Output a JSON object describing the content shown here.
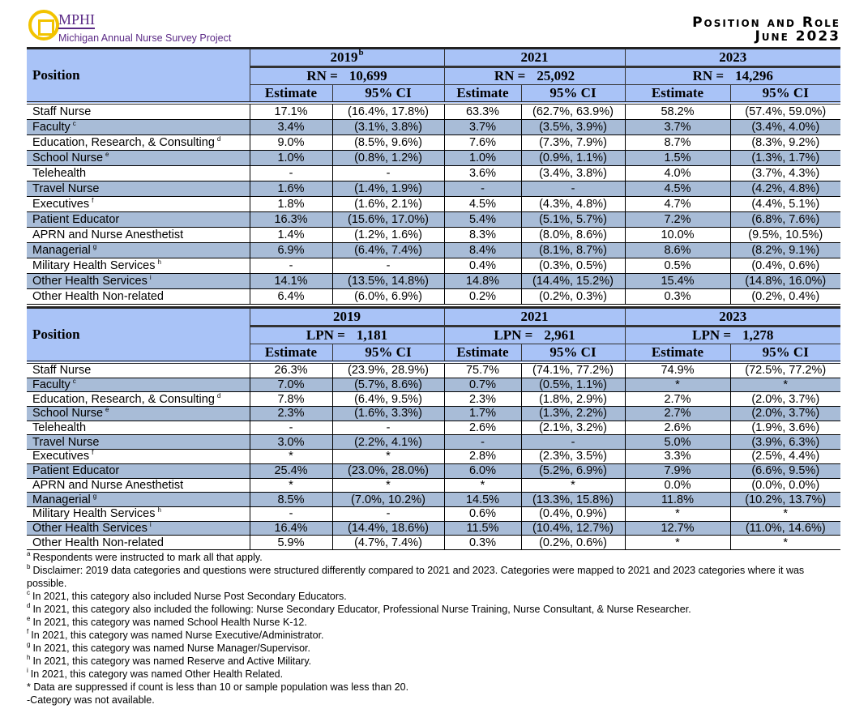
{
  "header": {
    "logo_text": "MPHI",
    "logo_subtitle": "Michigan Annual Nurse Survey Project",
    "title_line1": "Position and Role",
    "title_line2": "June 2023"
  },
  "colors": {
    "header_bg": "#a9c3f7",
    "stripe_bg": "#a8bcd7",
    "logo_purple": "#5b2a86",
    "logo_gold": "#f2c300"
  },
  "tables": [
    {
      "position_header": "Position",
      "estimate_label": "Estimate",
      "ci_label": "95% CI",
      "years": [
        {
          "year": "2019",
          "sup": "b",
          "n_label": "RN =",
          "n": "10,699"
        },
        {
          "year": "2021",
          "sup": "",
          "n_label": "RN =",
          "n": "25,092"
        },
        {
          "year": "2023",
          "sup": "",
          "n_label": "RN =",
          "n": "14,296"
        }
      ],
      "rows": [
        {
          "label": "Staff Nurse",
          "sup": "",
          "vals": [
            "17.1%",
            "(16.4%, 17.8%)",
            "63.3%",
            "(62.7%, 63.9%)",
            "58.2%",
            "(57.4%, 59.0%)"
          ]
        },
        {
          "label": "Faculty",
          "sup": "c",
          "vals": [
            "3.4%",
            "(3.1%, 3.8%)",
            "3.7%",
            "(3.5%, 3.9%)",
            "3.7%",
            "(3.4%, 4.0%)"
          ]
        },
        {
          "label": "Education, Research, & Consulting",
          "sup": "d",
          "vals": [
            "9.0%",
            "(8.5%, 9.6%)",
            "7.6%",
            "(7.3%, 7.9%)",
            "8.7%",
            "(8.3%, 9.2%)"
          ]
        },
        {
          "label": "School Nurse",
          "sup": "e",
          "vals": [
            "1.0%",
            "(0.8%, 1.2%)",
            "1.0%",
            "(0.9%, 1.1%)",
            "1.5%",
            "(1.3%, 1.7%)"
          ]
        },
        {
          "label": "Telehealth",
          "sup": "",
          "vals": [
            "-",
            "-",
            "3.6%",
            "(3.4%, 3.8%)",
            "4.0%",
            "(3.7%, 4.3%)"
          ]
        },
        {
          "label": "Travel Nurse",
          "sup": "",
          "vals": [
            "1.6%",
            "(1.4%, 1.9%)",
            "-",
            "-",
            "4.5%",
            "(4.2%, 4.8%)"
          ]
        },
        {
          "label": "Executives",
          "sup": "f",
          "vals": [
            "1.8%",
            "(1.6%, 2.1%)",
            "4.5%",
            "(4.3%, 4.8%)",
            "4.7%",
            "(4.4%, 5.1%)"
          ]
        },
        {
          "label": "Patient Educator",
          "sup": "",
          "vals": [
            "16.3%",
            "(15.6%, 17.0%)",
            "5.4%",
            "(5.1%, 5.7%)",
            "7.2%",
            "(6.8%, 7.6%)"
          ]
        },
        {
          "label": "APRN and Nurse Anesthetist",
          "sup": "",
          "vals": [
            "1.4%",
            "(1.2%, 1.6%)",
            "8.3%",
            "(8.0%, 8.6%)",
            "10.0%",
            "(9.5%, 10.5%)"
          ]
        },
        {
          "label": "Managerial",
          "sup": "g",
          "vals": [
            "6.9%",
            "(6.4%, 7.4%)",
            "8.4%",
            "(8.1%, 8.7%)",
            "8.6%",
            "(8.2%, 9.1%)"
          ]
        },
        {
          "label": "Military Health Services",
          "sup": "h",
          "vals": [
            "-",
            "-",
            "0.4%",
            "(0.3%, 0.5%)",
            "0.5%",
            "(0.4%, 0.6%)"
          ]
        },
        {
          "label": "Other Health Services",
          "sup": "i",
          "vals": [
            "14.1%",
            "(13.5%, 14.8%)",
            "14.8%",
            "(14.4%, 15.2%)",
            "15.4%",
            "(14.8%, 16.0%)"
          ]
        },
        {
          "label": "Other Health Non-related",
          "sup": "",
          "vals": [
            "6.4%",
            "(6.0%, 6.9%)",
            "0.2%",
            "(0.2%, 0.3%)",
            "0.3%",
            "(0.2%, 0.4%)"
          ]
        }
      ]
    },
    {
      "position_header": "Position",
      "estimate_label": "Estimate",
      "ci_label": "95% CI",
      "years": [
        {
          "year": "2019",
          "sup": "",
          "n_label": "LPN =",
          "n": "1,181"
        },
        {
          "year": "2021",
          "sup": "",
          "n_label": "LPN =",
          "n": "2,961"
        },
        {
          "year": "2023",
          "sup": "",
          "n_label": "LPN =",
          "n": "1,278"
        }
      ],
      "rows": [
        {
          "label": "Staff Nurse",
          "sup": "",
          "vals": [
            "26.3%",
            "(23.9%, 28.9%)",
            "75.7%",
            "(74.1%, 77.2%)",
            "74.9%",
            "(72.5%, 77.2%)"
          ]
        },
        {
          "label": "Faculty",
          "sup": "c",
          "vals": [
            "7.0%",
            "(5.7%, 8.6%)",
            "0.7%",
            "(0.5%, 1.1%)",
            "*",
            "*"
          ]
        },
        {
          "label": "Education, Research, & Consulting",
          "sup": "d",
          "vals": [
            "7.8%",
            "(6.4%, 9.5%)",
            "2.3%",
            "(1.8%, 2.9%)",
            "2.7%",
            "(2.0%, 3.7%)"
          ]
        },
        {
          "label": "School Nurse",
          "sup": "e",
          "vals": [
            "2.3%",
            "(1.6%, 3.3%)",
            "1.7%",
            "(1.3%, 2.2%)",
            "2.7%",
            "(2.0%, 3.7%)"
          ]
        },
        {
          "label": "Telehealth",
          "sup": "",
          "vals": [
            "-",
            "-",
            "2.6%",
            "(2.1%, 3.2%)",
            "2.6%",
            "(1.9%, 3.6%)"
          ]
        },
        {
          "label": "Travel Nurse",
          "sup": "",
          "vals": [
            "3.0%",
            "(2.2%, 4.1%)",
            "-",
            "-",
            "5.0%",
            "(3.9%, 6.3%)"
          ]
        },
        {
          "label": "Executives",
          "sup": "f",
          "vals": [
            "*",
            "*",
            "2.8%",
            "(2.3%, 3.5%)",
            "3.3%",
            "(2.5%, 4.4%)"
          ]
        },
        {
          "label": "Patient Educator",
          "sup": "",
          "vals": [
            "25.4%",
            "(23.0%, 28.0%)",
            "6.0%",
            "(5.2%, 6.9%)",
            "7.9%",
            "(6.6%, 9.5%)"
          ]
        },
        {
          "label": "APRN and Nurse Anesthetist",
          "sup": "",
          "vals": [
            "*",
            "*",
            "*",
            "*",
            "0.0%",
            "(0.0%, 0.0%)"
          ]
        },
        {
          "label": "Managerial",
          "sup": "g",
          "vals": [
            "8.5%",
            "(7.0%, 10.2%)",
            "14.5%",
            "(13.3%, 15.8%)",
            "11.8%",
            "(10.2%, 13.7%)"
          ]
        },
        {
          "label": "Military Health Services",
          "sup": "h",
          "vals": [
            "-",
            "-",
            "0.6%",
            "(0.4%, 0.9%)",
            "*",
            "*"
          ]
        },
        {
          "label": "Other Health Services",
          "sup": "i",
          "vals": [
            "16.4%",
            "(14.4%, 18.6%)",
            "11.5%",
            "(10.4%, 12.7%)",
            "12.7%",
            "(11.0%, 14.6%)"
          ]
        },
        {
          "label": "Other Health Non-related",
          "sup": "",
          "vals": [
            "5.9%",
            "(4.7%, 7.4%)",
            "0.3%",
            "(0.2%, 0.6%)",
            "*",
            "*"
          ]
        }
      ]
    }
  ],
  "footnotes": [
    {
      "sup": "a",
      "text": "Respondents were instructed to mark all that apply."
    },
    {
      "sup": "b",
      "text": "Disclaimer: 2019 data categories and questions were structured differently compared to 2021 and 2023. Categories were mapped to 2021 and 2023 categories where it was possible."
    },
    {
      "sup": "c",
      "text": "In 2021, this category also included Nurse Post Secondary Educators."
    },
    {
      "sup": "d",
      "text": "In 2021, this category also included the following: Nurse Secondary Educator, Professional Nurse Training, Nurse Consultant, & Nurse Researcher."
    },
    {
      "sup": "e",
      "text": "In 2021, this category was named School Health Nurse K-12."
    },
    {
      "sup": "f",
      "text": "In 2021, this category was named Nurse Executive/Administrator."
    },
    {
      "sup": "g",
      "text": "In 2021, this category was named Nurse Manager/Supervisor."
    },
    {
      "sup": "h",
      "text": "In 2021, this category was named Reserve and Active Military."
    },
    {
      "sup": "i",
      "text": "In 2021, this category was named Other Health Related."
    },
    {
      "sup": "",
      "text": "* Data are suppressed if count is less than 10 or sample population was less than 20."
    },
    {
      "sup": "",
      "text": "-Category was not available."
    }
  ]
}
